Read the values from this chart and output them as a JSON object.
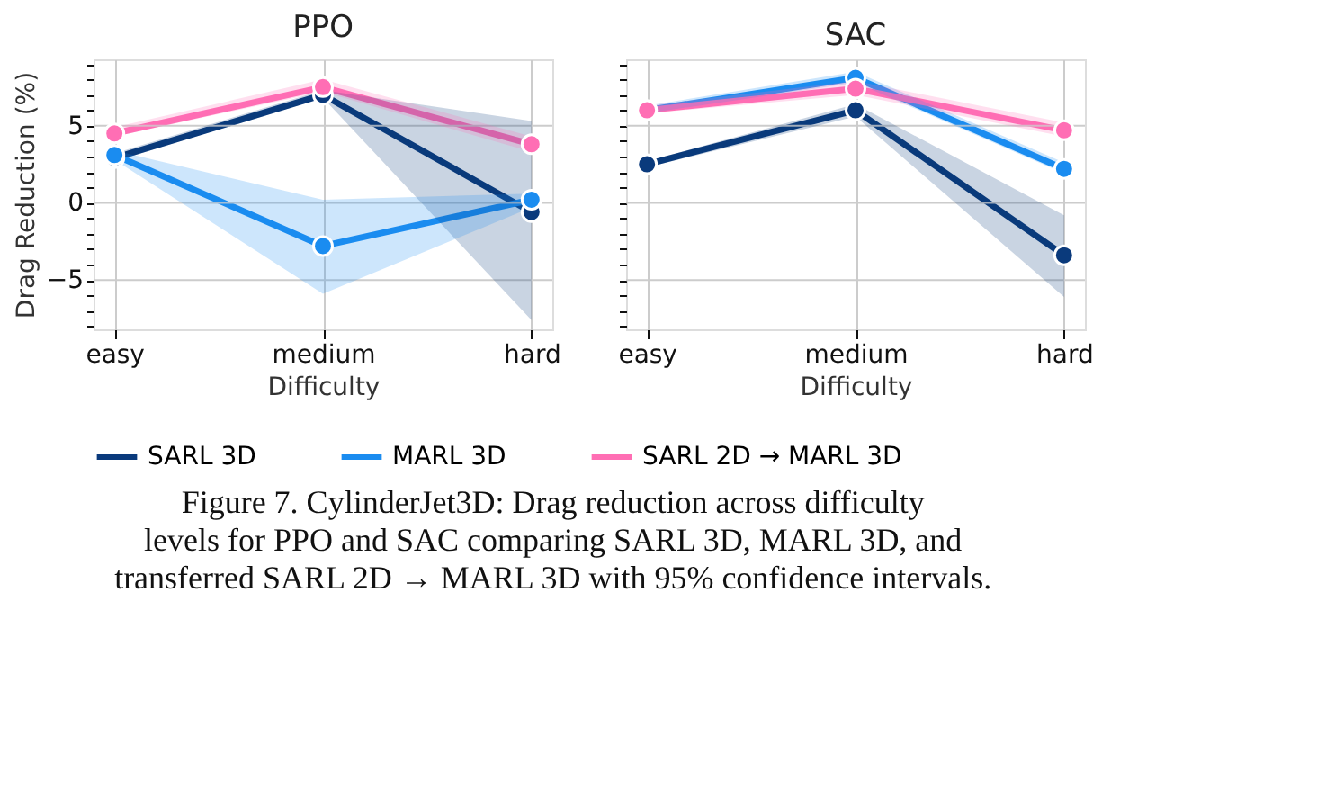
{
  "chart_data": [
    {
      "type": "line",
      "title": "PPO",
      "xlabel": "Difficulty",
      "ylabel": "Drag Reduction (%)",
      "categories": [
        "easy",
        "medium",
        "hard"
      ],
      "series": [
        {
          "name": "SARL 3D",
          "color": "#0a3a7c",
          "values": [
            2.9,
            7.0,
            -0.6
          ],
          "lower": [
            2.7,
            6.8,
            -7.6
          ],
          "upper": [
            3.2,
            7.3,
            5.3
          ]
        },
        {
          "name": "MARL 3D",
          "color": "#1a8cf0",
          "values": [
            3.1,
            -2.8,
            0.2
          ],
          "lower": [
            2.8,
            -5.9,
            -0.3
          ],
          "upper": [
            3.4,
            0.2,
            0.6
          ]
        },
        {
          "name": "SARL 2D → MARL 3D",
          "color": "#ff6eb4",
          "values": [
            4.5,
            7.5,
            3.8
          ],
          "lower": [
            4.3,
            7.2,
            3.3
          ],
          "upper": [
            4.9,
            8.0,
            4.3
          ]
        }
      ],
      "ylim": [
        -8.2,
        9.3
      ],
      "yticks": [
        {
          "value": -8,
          "label": null
        },
        {
          "value": -7,
          "label": null
        },
        {
          "value": -6,
          "label": null
        },
        -5,
        {
          "value": -4,
          "label": null
        },
        {
          "value": -3,
          "label": null
        },
        {
          "value": -2,
          "label": null
        },
        {
          "value": -1,
          "label": null
        },
        0,
        {
          "value": 1,
          "label": null
        },
        {
          "value": 2,
          "label": null
        },
        {
          "value": 3,
          "label": null
        },
        {
          "value": 4,
          "label": null
        },
        5,
        {
          "value": 6,
          "label": null
        },
        {
          "value": 7,
          "label": null
        },
        {
          "value": 8,
          "label": null
        },
        {
          "value": 9,
          "label": null
        }
      ],
      "grid": true,
      "marker": "circle",
      "legend": "bottom"
    },
    {
      "type": "line",
      "title": "SAC",
      "xlabel": "Difficulty",
      "categories": [
        "easy",
        "medium",
        "hard"
      ],
      "series": [
        {
          "name": "SARL 3D",
          "color": "#0a3a7c",
          "values": [
            2.5,
            6.0,
            -3.4
          ],
          "lower": [
            2.3,
            5.6,
            -6.1
          ],
          "upper": [
            2.7,
            6.4,
            -0.8
          ]
        },
        {
          "name": "MARL 3D",
          "color": "#1a8cf0",
          "values": [
            6.0,
            8.1,
            2.2
          ],
          "lower": [
            5.8,
            7.8,
            1.9
          ],
          "upper": [
            6.3,
            8.5,
            2.6
          ]
        },
        {
          "name": "SARL 2D → MARL 3D",
          "color": "#ff6eb4",
          "values": [
            6.0,
            7.4,
            4.7
          ],
          "lower": [
            5.8,
            7.0,
            4.3
          ],
          "upper": [
            6.3,
            7.9,
            5.2
          ]
        }
      ],
      "ylim": [
        -8.2,
        9.3
      ],
      "yticks": [
        {
          "value": -8,
          "label": null
        },
        {
          "value": -7,
          "label": null
        },
        {
          "value": -6,
          "label": null
        },
        -5,
        {
          "value": -4,
          "label": null
        },
        {
          "value": -3,
          "label": null
        },
        {
          "value": -2,
          "label": null
        },
        {
          "value": -1,
          "label": null
        },
        0,
        {
          "value": 1,
          "label": null
        },
        {
          "value": 2,
          "label": null
        },
        {
          "value": 3,
          "label": null
        },
        {
          "value": 4,
          "label": null
        },
        5,
        {
          "value": 6,
          "label": null
        },
        {
          "value": 7,
          "label": null
        },
        {
          "value": 8,
          "label": null
        },
        {
          "value": 9,
          "label": null
        }
      ],
      "grid": true,
      "marker": "circle",
      "tick_labels": "x",
      "annotations": [
        "Figure 7. CylinderJet3D: Drag reduction across difficulty levels for PPO and SAC comparing SARL 3D, MARL 3D, and transferred SARL 2D → MARL 3D with 95% confidence intervals."
      ]
    }
  ]
}
